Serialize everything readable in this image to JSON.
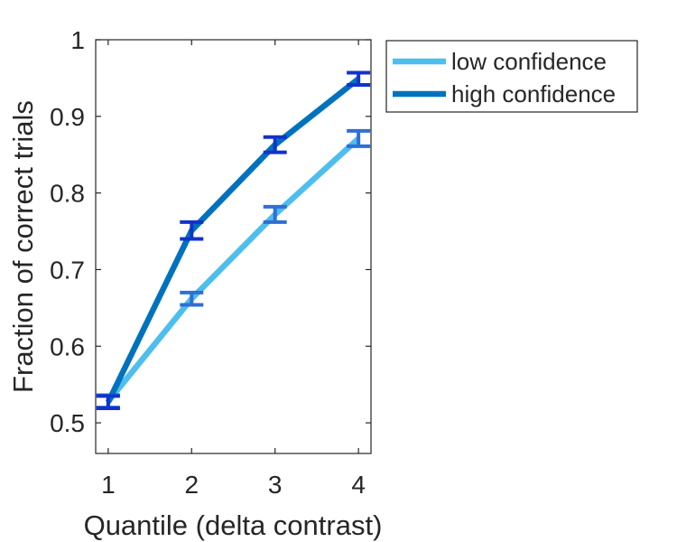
{
  "chart_data": {
    "type": "line",
    "xlabel": "Quantile (delta contrast)",
    "ylabel": "Fraction of correct trials",
    "x": [
      1,
      2,
      3,
      4
    ],
    "xlim": [
      0.85,
      4.15
    ],
    "ylim": [
      0.46,
      1.0
    ],
    "xticks": [
      1,
      2,
      3,
      4
    ],
    "yticks": [
      0.5,
      0.6,
      0.7,
      0.8,
      0.9,
      1
    ],
    "ytick_labels": [
      "0.5",
      "0.6",
      "0.7",
      "0.8",
      "0.9",
      "1"
    ],
    "grid": false,
    "legend_position": "outside-top-right",
    "series": [
      {
        "name": "low confidence",
        "color": "#4DBEEE",
        "errorbar_color": "#2E6FD6",
        "values": [
          0.528,
          0.662,
          0.772,
          0.871
        ],
        "errors": [
          0.008,
          0.008,
          0.01,
          0.01
        ]
      },
      {
        "name": "high confidence",
        "color": "#0072BD",
        "errorbar_color": "#1133CC",
        "values": [
          0.527,
          0.751,
          0.863,
          0.949
        ],
        "errors": [
          0.008,
          0.011,
          0.01,
          0.008
        ]
      }
    ]
  }
}
